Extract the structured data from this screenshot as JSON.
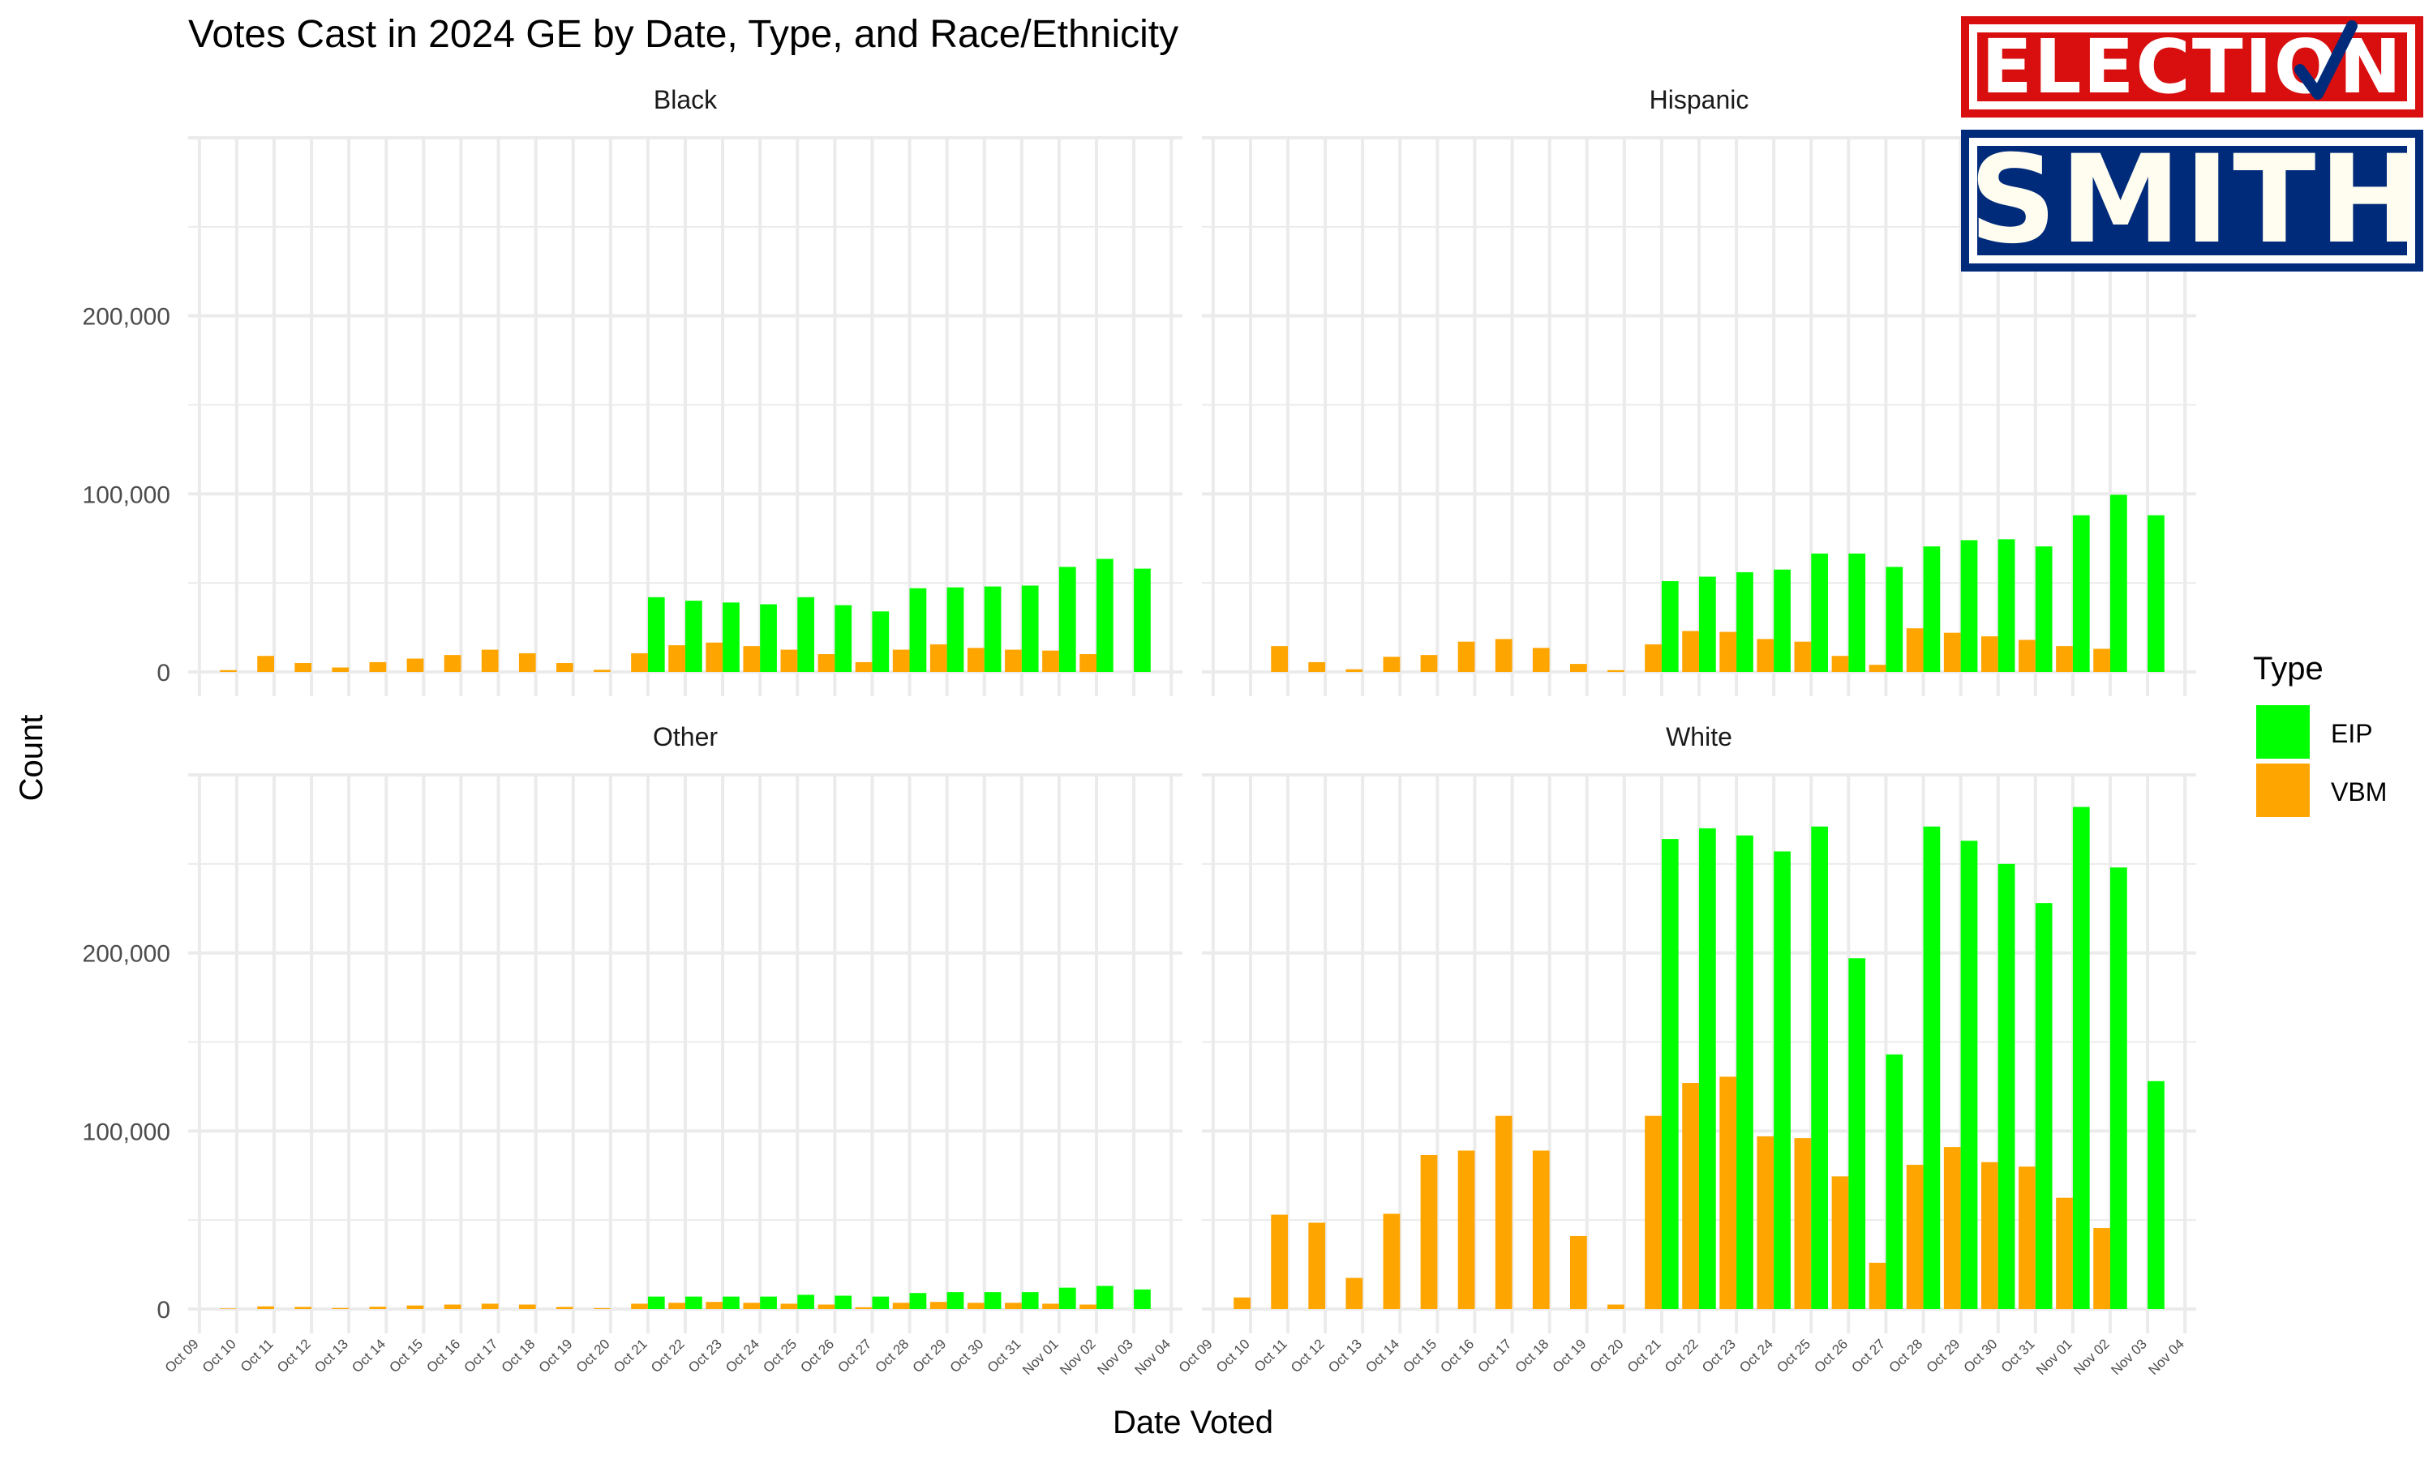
{
  "title": "Votes Cast in 2024 GE by Date, Type, and Race/Ethnicity",
  "logo": {
    "line1": "ELECTION",
    "line2": "SMITH"
  },
  "colors": {
    "EIP": "#00ff00",
    "VBM": "#ffa500",
    "grid": "#ebebeb",
    "text": "#1a1a1a",
    "axisText": "#4d4d4d"
  },
  "chart_data": {
    "type": "bar",
    "xlabel": "Date Voted",
    "ylabel": "Count",
    "ylim": [
      0,
      300000
    ],
    "yticks": [
      0,
      100000,
      200000
    ],
    "ytick_labels": [
      "0",
      "100,000",
      "200,000"
    ],
    "legend": {
      "title": "Type",
      "position": "right",
      "entries": [
        "EIP",
        "VBM"
      ]
    },
    "x_tick_labels": [
      "Oct 09",
      "Oct 10",
      "Oct 11",
      "Oct 12",
      "Oct 13",
      "Oct 14",
      "Oct 15",
      "Oct 16",
      "Oct 17",
      "Oct 18",
      "Oct 19",
      "Oct 20",
      "Oct 21",
      "Oct 22",
      "Oct 23",
      "Oct 24",
      "Oct 25",
      "Oct 26",
      "Oct 27",
      "Oct 28",
      "Oct 29",
      "Oct 30",
      "Oct 31",
      "Nov 01",
      "Nov 02",
      "Nov 03",
      "Nov 04"
    ],
    "categories": [
      "Oct 10",
      "Oct 11",
      "Oct 12",
      "Oct 13",
      "Oct 14",
      "Oct 15",
      "Oct 16",
      "Oct 17",
      "Oct 18",
      "Oct 19",
      "Oct 20",
      "Oct 21",
      "Oct 22",
      "Oct 23",
      "Oct 24",
      "Oct 25",
      "Oct 26",
      "Oct 27",
      "Oct 28",
      "Oct 29",
      "Oct 30",
      "Oct 31",
      "Nov 01",
      "Nov 02",
      "Nov 03"
    ],
    "panels": [
      {
        "name": "Black",
        "series": [
          {
            "name": "EIP",
            "values": [
              0,
              0,
              0,
              0,
              0,
              0,
              0,
              0,
              0,
              0,
              0,
              42000,
              40000,
              39000,
              38000,
              42000,
              37500,
              34000,
              47000,
              47500,
              48000,
              48500,
              59000,
              63500,
              58000
            ]
          },
          {
            "name": "VBM",
            "values": [
              1000,
              9000,
              5000,
              2500,
              5500,
              7500,
              9500,
              12500,
              10500,
              5000,
              1200,
              10500,
              15000,
              16500,
              14500,
              12500,
              10000,
              5500,
              12500,
              15500,
              13500,
              12500,
              12000,
              10000,
              0
            ]
          }
        ]
      },
      {
        "name": "Hispanic",
        "series": [
          {
            "name": "EIP",
            "values": [
              0,
              0,
              0,
              0,
              0,
              0,
              0,
              0,
              0,
              0,
              0,
              51000,
              53500,
              56000,
              57500,
              66500,
              66500,
              59000,
              70500,
              74000,
              74500,
              70500,
              88000,
              99500,
              88000
            ]
          },
          {
            "name": "VBM",
            "values": [
              0,
              14500,
              5500,
              1500,
              8500,
              9500,
              17000,
              18500,
              13500,
              4500,
              1000,
              15500,
              23000,
              22500,
              18500,
              17000,
              9000,
              4000,
              24500,
              22000,
              20000,
              18000,
              14500,
              13000,
              0
            ]
          }
        ]
      },
      {
        "name": "Other",
        "series": [
          {
            "name": "EIP",
            "values": [
              0,
              0,
              0,
              0,
              0,
              0,
              0,
              0,
              0,
              0,
              0,
              7000,
              7000,
              7000,
              7000,
              8000,
              7500,
              7000,
              9000,
              9500,
              9500,
              9500,
              12000,
              13000,
              11000
            ]
          },
          {
            "name": "VBM",
            "values": [
              300,
              1500,
              1200,
              600,
              1300,
              2000,
              2500,
              3000,
              2500,
              1200,
              500,
              3000,
              3500,
              4000,
              3500,
              3000,
              2500,
              1000,
              3500,
              4000,
              3500,
              3500,
              3000,
              2500,
              0
            ]
          }
        ]
      },
      {
        "name": "White",
        "series": [
          {
            "name": "EIP",
            "values": [
              0,
              0,
              0,
              0,
              0,
              0,
              0,
              0,
              0,
              0,
              0,
              264000,
              270000,
              266000,
              257000,
              271000,
              197000,
              143000,
              271000,
              263000,
              250000,
              228000,
              282000,
              248000,
              128000
            ]
          },
          {
            "name": "VBM",
            "values": [
              6500,
              53000,
              48500,
              17500,
              53500,
              86500,
              89000,
              108500,
              89000,
              41000,
              2500,
              108500,
              127000,
              130500,
              97000,
              96000,
              74500,
              26000,
              81000,
              91000,
              82500,
              80000,
              62500,
              45500,
              0
            ]
          }
        ]
      }
    ]
  }
}
